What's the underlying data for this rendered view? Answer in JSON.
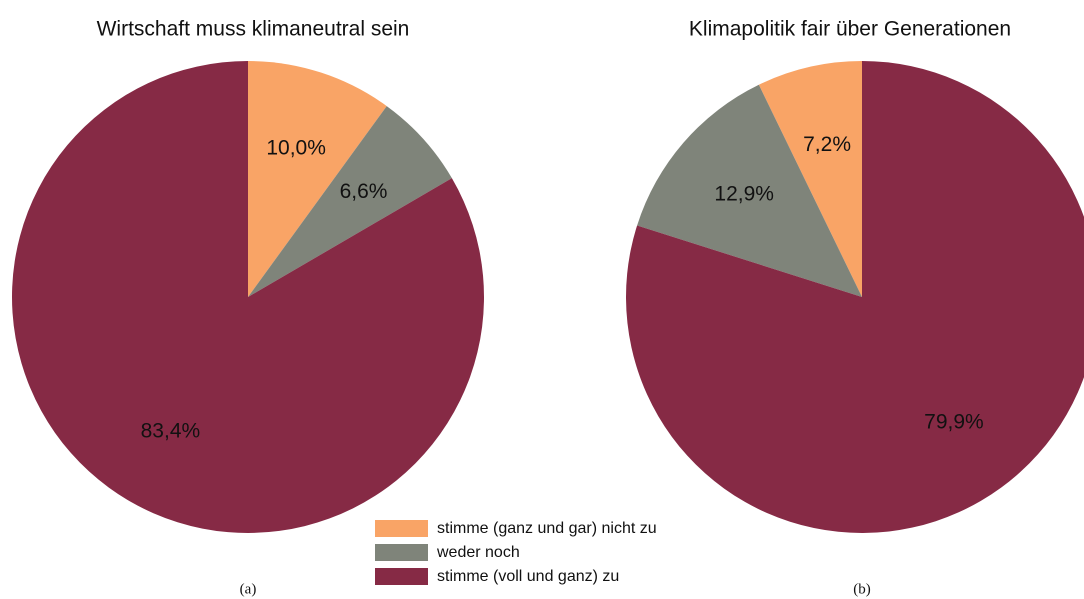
{
  "charts": [
    {
      "type": "pie",
      "title": "Wirtschaft muss klimaneutral sein",
      "caption": "(a)",
      "clockwise": true,
      "values": [
        10.0,
        6.6,
        83.4
      ],
      "value_labels": [
        "10,0%",
        "6,6%",
        "83,4%"
      ]
    },
    {
      "type": "pie",
      "title": "Klimapolitik fair über Generationen",
      "caption": "(b)",
      "clockwise": false,
      "values": [
        7.2,
        12.9,
        79.9
      ],
      "value_labels": [
        "7,2%",
        "12,9%",
        "79,9%"
      ]
    }
  ],
  "legend": {
    "categories": [
      "stimme (ganz und gar) nicht zu",
      "weder noch",
      "stimme (voll und ganz) zu"
    ],
    "colors": [
      "#f9a466",
      "#7f847a",
      "#862a45"
    ]
  }
}
